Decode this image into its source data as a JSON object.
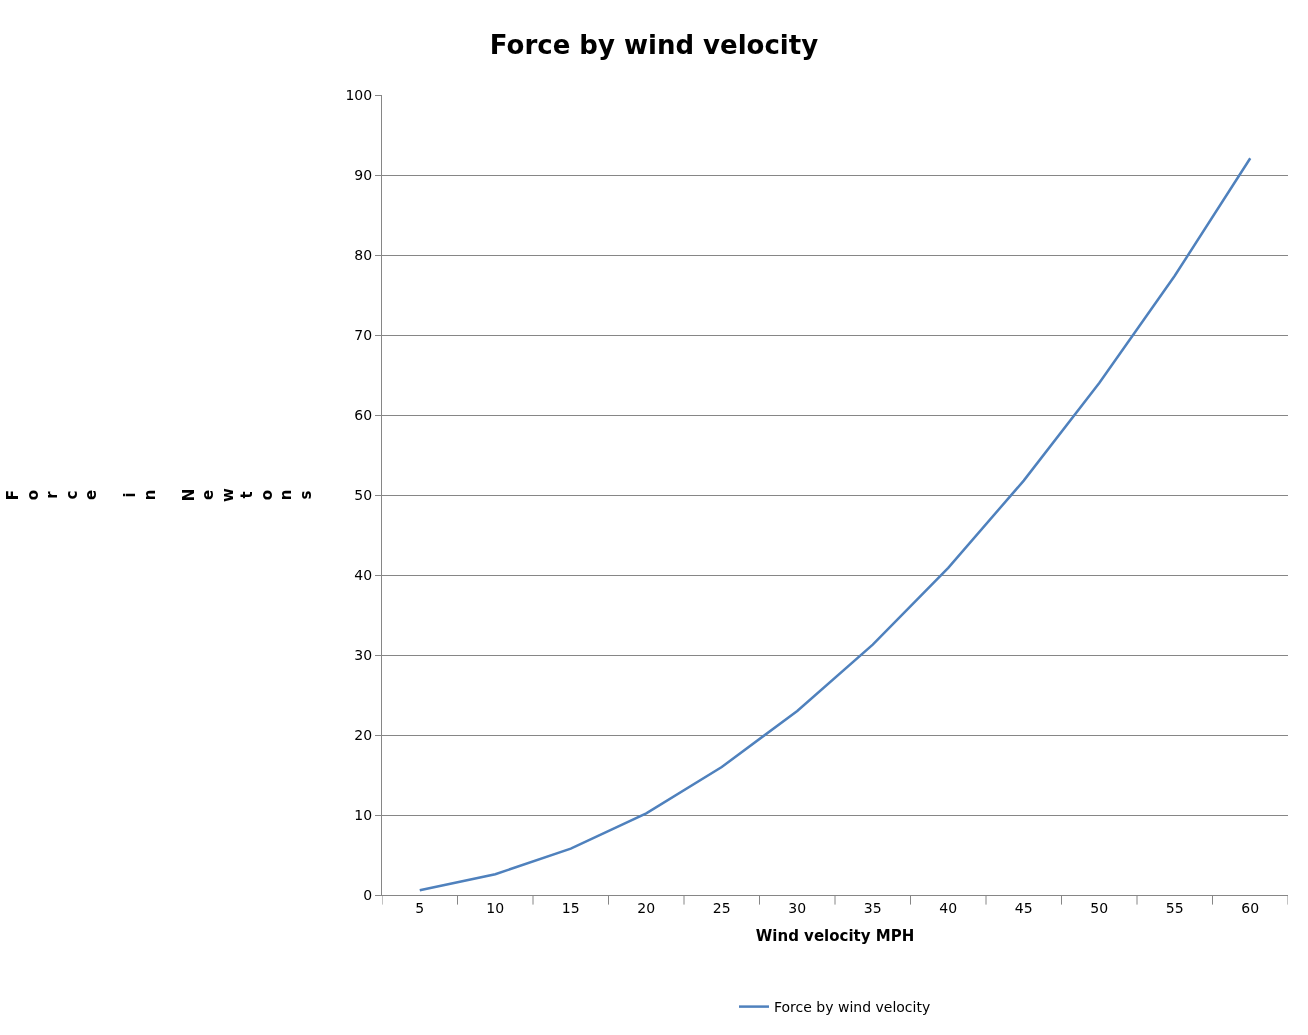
{
  "chart_data": {
    "type": "line",
    "title": "Force by wind velocity",
    "xlabel": "Wind velocity MPH",
    "ylabel": "Force in Newtons",
    "categories": [
      "5",
      "10",
      "15",
      "20",
      "25",
      "30",
      "35",
      "40",
      "45",
      "50",
      "55",
      "60"
    ],
    "series": [
      {
        "name": "Force by wind velocity",
        "color": "#4f81bd",
        "values": [
          0.6,
          2.6,
          5.8,
          10.2,
          16,
          23,
          31.3,
          40.9,
          51.8,
          64,
          77.4,
          92.1
        ]
      }
    ],
    "ylim": [
      0,
      100
    ],
    "yticks": [
      0,
      10,
      20,
      30,
      40,
      50,
      60,
      70,
      80,
      90,
      100
    ],
    "grid": "y",
    "legend": "bottom",
    "marker": "none",
    "line_style": "solid"
  }
}
